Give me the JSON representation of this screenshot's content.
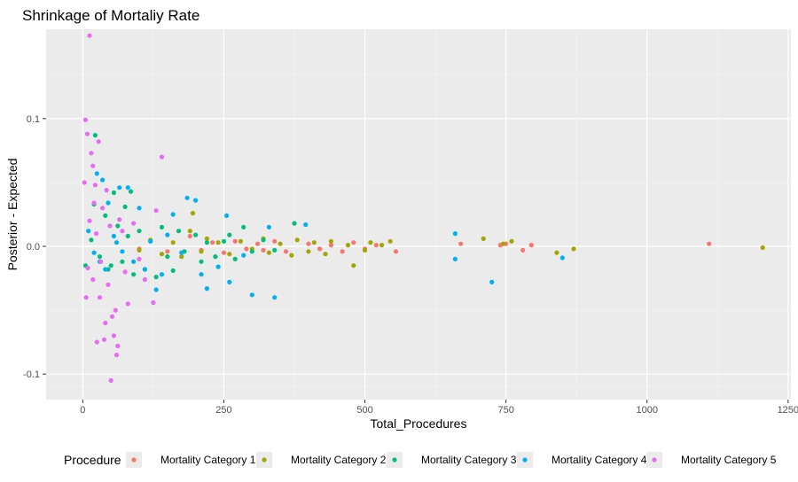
{
  "chart_data": {
    "type": "scatter",
    "title": "Shrinkage of Mortaliy Rate",
    "xlabel": "Total_Procedures",
    "ylabel": "Posterior - Expected",
    "xlim": [
      -65,
      1255
    ],
    "ylim": [
      -0.12,
      0.17
    ],
    "xticks": [
      0,
      250,
      500,
      750,
      1000,
      1250
    ],
    "yticks": [
      -0.1,
      0.0,
      0.1
    ],
    "xtick_labels": [
      "0",
      "250",
      "500",
      "750",
      "1000",
      "1250"
    ],
    "ytick_labels": [
      "-0.1",
      "0.0",
      "0.1"
    ],
    "grid": true,
    "legend": {
      "title": "Procedure",
      "position": "bottom"
    },
    "series": [
      {
        "name": "Mortality Category 1",
        "color": "#F8766D",
        "points": [
          [
            100,
            -0.002
          ],
          [
            150,
            -0.004
          ],
          [
            190,
            0.008
          ],
          [
            210,
            -0.003
          ],
          [
            230,
            0.003
          ],
          [
            250,
            -0.005
          ],
          [
            270,
            0.004
          ],
          [
            290,
            -0.002
          ],
          [
            310,
            0.002
          ],
          [
            320,
            -0.003
          ],
          [
            340,
            0.004
          ],
          [
            360,
            -0.004
          ],
          [
            400,
            0.002
          ],
          [
            420,
            -0.002
          ],
          [
            440,
            0.001
          ],
          [
            460,
            -0.004
          ],
          [
            480,
            0.003
          ],
          [
            500,
            -0.002
          ],
          [
            520,
            0.001
          ],
          [
            555,
            -0.004
          ],
          [
            670,
            0.002
          ],
          [
            740,
            0.001
          ],
          [
            750,
            0.002
          ],
          [
            780,
            -0.003
          ],
          [
            795,
            0.001
          ],
          [
            1110,
            0.002
          ]
        ]
      },
      {
        "name": "Mortality Category 2",
        "color": "#A3A500",
        "points": [
          [
            100,
            -0.003
          ],
          [
            120,
            0.005
          ],
          [
            140,
            -0.006
          ],
          [
            160,
            0.003
          ],
          [
            175,
            -0.008
          ],
          [
            190,
            0.012
          ],
          [
            195,
            0.026
          ],
          [
            210,
            -0.004
          ],
          [
            220,
            0.006
          ],
          [
            240,
            0.003
          ],
          [
            260,
            -0.006
          ],
          [
            280,
            0.004
          ],
          [
            300,
            -0.002
          ],
          [
            320,
            0.006
          ],
          [
            330,
            -0.005
          ],
          [
            350,
            0.002
          ],
          [
            370,
            -0.007
          ],
          [
            380,
            0.005
          ],
          [
            400,
            -0.004
          ],
          [
            410,
            0.003
          ],
          [
            430,
            -0.006
          ],
          [
            440,
            0.004
          ],
          [
            470,
            0.001
          ],
          [
            480,
            -0.015
          ],
          [
            500,
            -0.003
          ],
          [
            510,
            0.003
          ],
          [
            530,
            0.001
          ],
          [
            545,
            0.004
          ],
          [
            710,
            0.006
          ],
          [
            745,
            0.002
          ],
          [
            760,
            0.004
          ],
          [
            840,
            -0.005
          ],
          [
            870,
            -0.002
          ],
          [
            1205,
            -0.001
          ]
        ]
      },
      {
        "name": "Mortality Category 3",
        "color": "#00BF7D",
        "points": [
          [
            5,
            -0.015
          ],
          [
            15,
            0.005
          ],
          [
            22,
            0.087
          ],
          [
            30,
            -0.008
          ],
          [
            40,
            0.024
          ],
          [
            50,
            -0.015
          ],
          [
            55,
            0.042
          ],
          [
            62,
            0.016
          ],
          [
            70,
            -0.012
          ],
          [
            80,
            0.008
          ],
          [
            85,
            0.043
          ],
          [
            90,
            -0.022
          ],
          [
            100,
            0.012
          ],
          [
            110,
            -0.018
          ],
          [
            120,
            0.004
          ],
          [
            130,
            -0.024
          ],
          [
            140,
            0.015
          ],
          [
            150,
            -0.008
          ],
          [
            160,
            -0.019
          ],
          [
            170,
            0.012
          ],
          [
            180,
            -0.004
          ],
          [
            200,
            0.009
          ],
          [
            210,
            -0.012
          ],
          [
            220,
            0.003
          ],
          [
            235,
            -0.008
          ],
          [
            250,
            0.004
          ],
          [
            260,
            0.009
          ],
          [
            270,
            -0.01
          ],
          [
            285,
            0.015
          ],
          [
            300,
            -0.004
          ],
          [
            320,
            0.005
          ],
          [
            340,
            -0.003
          ],
          [
            375,
            0.018
          ],
          [
            20,
            0.033
          ],
          [
            45,
            -0.018
          ],
          [
            75,
            0.031
          ]
        ]
      },
      {
        "name": "Mortality Category 4",
        "color": "#00B0F6",
        "points": [
          [
            10,
            0.012
          ],
          [
            20,
            -0.005
          ],
          [
            25,
            0.057
          ],
          [
            30,
            -0.012
          ],
          [
            35,
            0.052
          ],
          [
            40,
            -0.018
          ],
          [
            45,
            0.034
          ],
          [
            55,
            0.008
          ],
          [
            60,
            0.003
          ],
          [
            65,
            0.046
          ],
          [
            70,
            -0.004
          ],
          [
            80,
            0.046
          ],
          [
            90,
            -0.012
          ],
          [
            100,
            0.03
          ],
          [
            110,
            -0.018
          ],
          [
            120,
            0.004
          ],
          [
            130,
            -0.034
          ],
          [
            140,
            -0.022
          ],
          [
            150,
            0.009
          ],
          [
            160,
            0.025
          ],
          [
            175,
            -0.005
          ],
          [
            185,
            0.038
          ],
          [
            200,
            0.036
          ],
          [
            210,
            -0.022
          ],
          [
            220,
            -0.033
          ],
          [
            240,
            -0.016
          ],
          [
            255,
            0.024
          ],
          [
            260,
            -0.028
          ],
          [
            300,
            -0.038
          ],
          [
            340,
            -0.04
          ],
          [
            285,
            -0.007
          ],
          [
            330,
            0.015
          ],
          [
            395,
            0.017
          ],
          [
            660,
            0.01
          ],
          [
            660,
            -0.01
          ],
          [
            725,
            -0.028
          ],
          [
            850,
            -0.009
          ]
        ]
      },
      {
        "name": "Mortality Category 5",
        "color": "#E76BF3",
        "points": [
          [
            5,
            0.099
          ],
          [
            8,
            0.088
          ],
          [
            12,
            0.165
          ],
          [
            15,
            0.073
          ],
          [
            18,
            0.063
          ],
          [
            22,
            0.048
          ],
          [
            25,
            -0.075
          ],
          [
            28,
            0.082
          ],
          [
            30,
            -0.04
          ],
          [
            35,
            0.03
          ],
          [
            40,
            -0.06
          ],
          [
            45,
            -0.03
          ],
          [
            50,
            -0.105
          ],
          [
            55,
            -0.07
          ],
          [
            58,
            -0.05
          ],
          [
            60,
            -0.085
          ],
          [
            62,
            -0.078
          ],
          [
            65,
            0.021
          ],
          [
            70,
            0.012
          ],
          [
            75,
            -0.02
          ],
          [
            80,
            -0.045
          ],
          [
            90,
            0.018
          ],
          [
            100,
            -0.01
          ],
          [
            110,
            -0.026
          ],
          [
            125,
            -0.044
          ],
          [
            130,
            0.028
          ],
          [
            140,
            0.07
          ],
          [
            3,
            0.05
          ],
          [
            6,
            -0.04
          ],
          [
            9,
            -0.017
          ],
          [
            12,
            0.02
          ],
          [
            18,
            -0.026
          ],
          [
            20,
            0.034
          ],
          [
            24,
            0.01
          ],
          [
            32,
            -0.012
          ],
          [
            38,
            -0.073
          ],
          [
            42,
            0.044
          ],
          [
            48,
            0.016
          ],
          [
            52,
            -0.055
          ]
        ]
      }
    ]
  }
}
